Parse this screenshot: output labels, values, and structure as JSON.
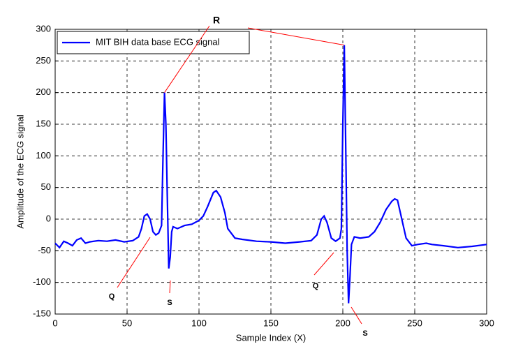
{
  "chart_data": {
    "type": "line",
    "xlabel": "Sample Index (X)",
    "ylabel": "Amplitude of the ECG signal",
    "xlim": [
      0,
      300
    ],
    "ylim": [
      -150,
      300
    ],
    "xticks": [
      0,
      50,
      100,
      150,
      200,
      250,
      300
    ],
    "yticks": [
      -150,
      -100,
      -50,
      0,
      50,
      100,
      150,
      200,
      250,
      300
    ],
    "grid": true,
    "legend": "upper left",
    "x": [
      0,
      3,
      6,
      9,
      12,
      15,
      18,
      21,
      24,
      30,
      36,
      42,
      48,
      54,
      58,
      60,
      62,
      64,
      66,
      68,
      70,
      72,
      74,
      75,
      76,
      77,
      78,
      79,
      80,
      81,
      82,
      85,
      90,
      95,
      100,
      103,
      106,
      110,
      112,
      115,
      118,
      120,
      125,
      130,
      140,
      150,
      160,
      170,
      178,
      182,
      185,
      187,
      189,
      192,
      195,
      198,
      199,
      200,
      201,
      202,
      203,
      204,
      205,
      206,
      208,
      212,
      218,
      222,
      226,
      230,
      234,
      236,
      238,
      240,
      244,
      248,
      252,
      258,
      262,
      270,
      280,
      290,
      300
    ],
    "series": [
      {
        "name": "MIT BIH data base ECG signal",
        "color": "#0000ff",
        "values": [
          -38,
          -45,
          -35,
          -38,
          -42,
          -33,
          -30,
          -38,
          -36,
          -34,
          -35,
          -33,
          -36,
          -34,
          -28,
          -15,
          5,
          8,
          0,
          -20,
          -25,
          -22,
          -10,
          100,
          200,
          150,
          30,
          -78,
          -60,
          -20,
          -12,
          -15,
          -10,
          -8,
          -2,
          5,
          20,
          42,
          45,
          35,
          10,
          -15,
          -30,
          -32,
          -35,
          -36,
          -38,
          -36,
          -34,
          -25,
          0,
          5,
          -5,
          -30,
          -35,
          -30,
          -15,
          150,
          275,
          120,
          -50,
          -133,
          -90,
          -40,
          -28,
          -30,
          -28,
          -20,
          -5,
          15,
          28,
          32,
          30,
          10,
          -30,
          -42,
          -40,
          -38,
          -40,
          -42,
          -45,
          -43,
          -40
        ]
      }
    ],
    "annotations": [
      {
        "text": "R"
      },
      {
        "text": "Q"
      },
      {
        "text": "Q"
      },
      {
        "text": "S"
      },
      {
        "text": "S"
      }
    ]
  }
}
